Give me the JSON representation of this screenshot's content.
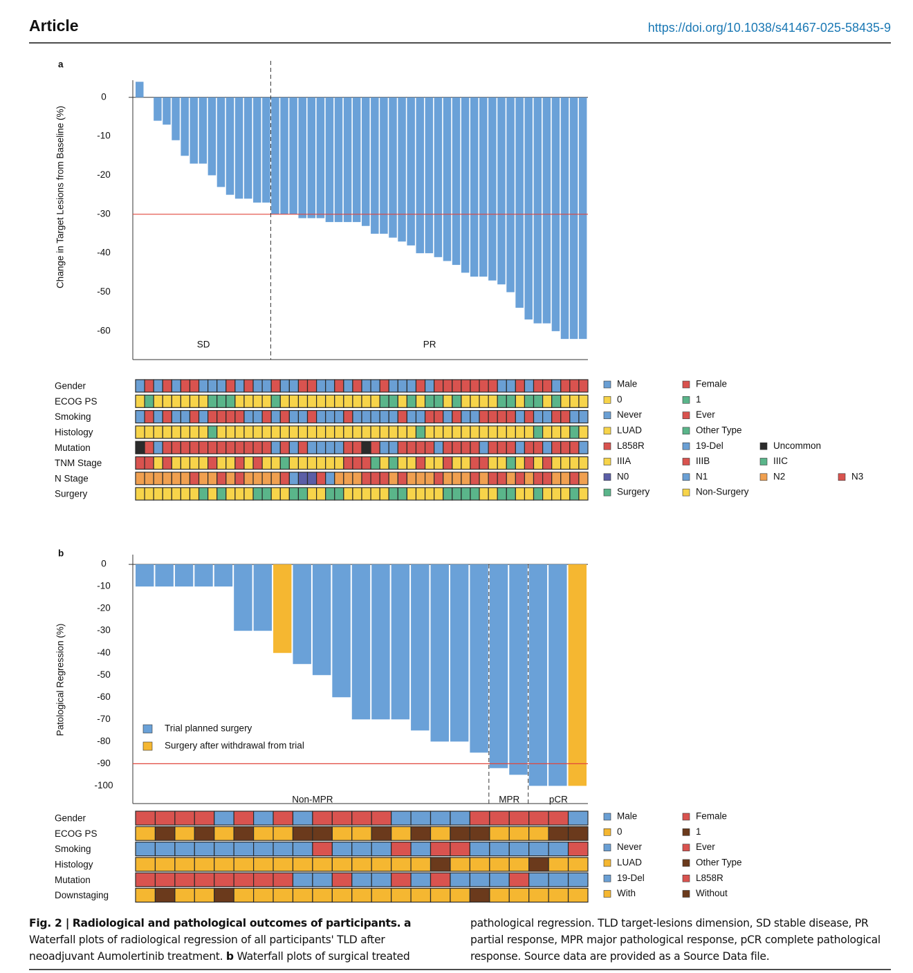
{
  "header": {
    "section": "Article",
    "doi": "https://doi.org/10.1038/s41467-025-58435-9"
  },
  "chart_data": [
    {
      "type": "bar",
      "panel": "a",
      "ylabel": "Change in Target Lesions from Baseline (%)",
      "ylim": [
        -67.3,
        4.4
      ],
      "yticks": [
        0,
        -10,
        -20,
        -30,
        -40,
        -50,
        -60
      ],
      "color": "#6aa1d8",
      "values": [
        4,
        0,
        -6,
        -7,
        -11,
        -15,
        -17,
        -17,
        -20,
        -23,
        -25,
        -26,
        -26,
        -27,
        -27,
        -30,
        -30,
        -30,
        -31,
        -31,
        -31,
        -32,
        -32,
        -32,
        -32,
        -33,
        -35,
        -35,
        -36,
        -37,
        -38,
        -40,
        -40,
        -41,
        -42,
        -43,
        -45,
        -46,
        -46,
        -47,
        -48,
        -50,
        -54,
        -57,
        -58,
        -58,
        -60,
        -62,
        -62,
        -62
      ],
      "threshold": -30,
      "threshold_color": "#e0463c",
      "groups": [
        {
          "label": "SD",
          "size": 15
        },
        {
          "label": "PR",
          "size": 35
        }
      ],
      "tracks": [
        {
          "label": "Gender",
          "legend": [
            {
              "label": "Male",
              "color": "#6a9fd4"
            },
            {
              "label": "Female",
              "color": "#d9534f"
            }
          ],
          "cells": [
            0,
            1,
            0,
            1,
            0,
            1,
            1,
            0,
            0,
            0,
            1,
            0,
            1,
            0,
            0,
            1,
            0,
            0,
            1,
            1,
            0,
            0,
            1,
            0,
            1,
            0,
            0,
            1,
            0,
            0,
            0,
            1,
            0,
            1,
            1,
            1,
            1,
            1,
            1,
            1,
            0,
            0,
            1,
            0,
            1,
            1,
            0,
            1,
            1,
            1
          ]
        },
        {
          "label": "ECOG PS",
          "legend": [
            {
              "label": "0",
              "color": "#f7d44a"
            },
            {
              "label": "1",
              "color": "#5ab58a"
            }
          ],
          "cells": [
            0,
            1,
            0,
            0,
            0,
            0,
            0,
            0,
            1,
            1,
            1,
            0,
            0,
            0,
            0,
            1,
            0,
            0,
            0,
            0,
            0,
            0,
            0,
            0,
            0,
            0,
            0,
            1,
            1,
            0,
            1,
            0,
            1,
            1,
            0,
            1,
            0,
            0,
            0,
            0,
            1,
            1,
            0,
            1,
            1,
            0,
            1,
            0,
            0,
            0
          ]
        },
        {
          "label": "Smoking",
          "legend": [
            {
              "label": "Never",
              "color": "#6a9fd4"
            },
            {
              "label": "Ever",
              "color": "#d9534f"
            }
          ],
          "cells": [
            0,
            1,
            0,
            1,
            0,
            0,
            1,
            0,
            1,
            1,
            1,
            1,
            0,
            0,
            1,
            0,
            1,
            0,
            0,
            1,
            0,
            0,
            0,
            1,
            0,
            0,
            0,
            0,
            0,
            1,
            0,
            0,
            1,
            1,
            0,
            1,
            0,
            0,
            1,
            1,
            1,
            1,
            0,
            1,
            0,
            0,
            1,
            1,
            0,
            0
          ]
        },
        {
          "label": "Histology",
          "legend": [
            {
              "label": "LUAD",
              "color": "#f7d44a"
            },
            {
              "label": "Other Type",
              "color": "#5ab58a"
            }
          ],
          "cells": [
            0,
            0,
            0,
            0,
            0,
            0,
            0,
            0,
            1,
            0,
            0,
            0,
            0,
            0,
            0,
            0,
            0,
            0,
            0,
            0,
            0,
            0,
            0,
            0,
            0,
            0,
            0,
            0,
            0,
            0,
            0,
            1,
            0,
            0,
            0,
            0,
            0,
            0,
            0,
            0,
            0,
            0,
            0,
            0,
            1,
            0,
            0,
            0,
            1,
            0
          ]
        },
        {
          "label": "Mutation",
          "legend": [
            {
              "label": "L858R",
              "color": "#d9534f"
            },
            {
              "label": "19-Del",
              "color": "#6a9fd4"
            },
            {
              "label": "Uncommon",
              "color": "#2b2b2b"
            }
          ],
          "cells": [
            2,
            0,
            1,
            0,
            0,
            0,
            0,
            0,
            0,
            0,
            0,
            0,
            0,
            0,
            0,
            1,
            0,
            1,
            0,
            1,
            1,
            1,
            1,
            0,
            0,
            2,
            0,
            1,
            1,
            0,
            0,
            0,
            0,
            1,
            0,
            0,
            0,
            0,
            1,
            0,
            0,
            0,
            1,
            0,
            0,
            1,
            0,
            0,
            0,
            1
          ]
        },
        {
          "label": "TNM Stage",
          "legend": [
            {
              "label": "IIIA",
              "color": "#f7d44a"
            },
            {
              "label": "IIIB",
              "color": "#d9534f"
            },
            {
              "label": "IIIC",
              "color": "#5ab58a"
            }
          ],
          "cells": [
            1,
            1,
            0,
            1,
            0,
            0,
            0,
            0,
            1,
            0,
            0,
            1,
            0,
            1,
            0,
            0,
            2,
            0,
            0,
            0,
            0,
            0,
            0,
            1,
            1,
            1,
            2,
            0,
            2,
            0,
            0,
            1,
            0,
            0,
            1,
            0,
            0,
            1,
            1,
            0,
            0,
            2,
            0,
            1,
            0,
            1,
            0,
            0,
            0,
            0
          ]
        },
        {
          "label": "N Stage",
          "legend": [
            {
              "label": "N0",
              "color": "#5b5ea6"
            },
            {
              "label": "N1",
              "color": "#6a9fd4"
            },
            {
              "label": "N2",
              "color": "#f0a050"
            },
            {
              "label": "N3",
              "color": "#d9534f"
            }
          ],
          "cells": [
            2,
            2,
            2,
            2,
            2,
            2,
            3,
            2,
            2,
            3,
            2,
            3,
            2,
            2,
            2,
            2,
            3,
            1,
            0,
            0,
            3,
            1,
            2,
            2,
            2,
            3,
            3,
            3,
            2,
            3,
            2,
            2,
            2,
            3,
            2,
            2,
            2,
            3,
            2,
            3,
            3,
            2,
            3,
            2,
            3,
            3,
            2,
            2,
            3,
            2
          ]
        },
        {
          "label": "Surgery",
          "legend": [
            {
              "label": "Surgery",
              "color": "#5ab58a"
            },
            {
              "label": "Non-Surgery",
              "color": "#f7d44a"
            }
          ],
          "cells": [
            1,
            1,
            1,
            1,
            1,
            1,
            1,
            0,
            1,
            0,
            1,
            1,
            1,
            0,
            0,
            1,
            1,
            0,
            0,
            1,
            1,
            0,
            0,
            1,
            1,
            1,
            1,
            1,
            0,
            0,
            1,
            1,
            1,
            1,
            0,
            0,
            0,
            0,
            1,
            1,
            0,
            0,
            1,
            1,
            0,
            1,
            1,
            1,
            0,
            1
          ]
        }
      ]
    },
    {
      "type": "bar",
      "panel": "b",
      "ylabel": "Patological Regression (%)",
      "ylim": [
        -108,
        4.4
      ],
      "yticks": [
        0,
        -10,
        -20,
        -30,
        -40,
        -50,
        -60,
        -70,
        -80,
        -90,
        -100
      ],
      "series": [
        {
          "name": "Trial planned surgery",
          "color": "#6aa1d8"
        },
        {
          "name": "Surgery after withdrawal from trial",
          "color": "#f5b731"
        }
      ],
      "values": [
        -10,
        -10,
        -10,
        -10,
        -10,
        -30,
        -30,
        -40,
        -45,
        -50,
        -60,
        -70,
        -70,
        -70,
        -75,
        -80,
        -80,
        -85,
        -92,
        -95,
        -100,
        -100,
        -100
      ],
      "bar_series": [
        0,
        0,
        0,
        0,
        0,
        0,
        0,
        1,
        0,
        0,
        0,
        0,
        0,
        0,
        0,
        0,
        0,
        0,
        0,
        0,
        0,
        0,
        1
      ],
      "threshold": -90,
      "threshold_color": "#e0463c",
      "groups": [
        {
          "label": "Non-MPR",
          "size": 18
        },
        {
          "label": "MPR",
          "size": 2
        },
        {
          "label": "pCR",
          "size": 3
        }
      ],
      "tracks": [
        {
          "label": "Gender",
          "legend": [
            {
              "label": "Male",
              "color": "#6a9fd4"
            },
            {
              "label": "Female",
              "color": "#d9534f"
            }
          ],
          "cells": [
            1,
            1,
            1,
            1,
            0,
            1,
            0,
            1,
            0,
            1,
            1,
            1,
            1,
            0,
            0,
            0,
            0,
            1,
            1,
            1,
            1,
            1,
            0
          ]
        },
        {
          "label": "ECOG PS",
          "legend": [
            {
              "label": "0",
              "color": "#f5b731"
            },
            {
              "label": "1",
              "color": "#6b3a1c"
            }
          ],
          "cells": [
            0,
            1,
            0,
            1,
            0,
            1,
            0,
            0,
            1,
            1,
            0,
            0,
            1,
            0,
            1,
            0,
            1,
            1,
            0,
            0,
            0,
            1,
            1
          ]
        },
        {
          "label": "Smoking",
          "legend": [
            {
              "label": "Never",
              "color": "#6a9fd4"
            },
            {
              "label": "Ever",
              "color": "#d9534f"
            }
          ],
          "cells": [
            0,
            0,
            0,
            0,
            0,
            0,
            0,
            0,
            0,
            1,
            0,
            0,
            0,
            1,
            0,
            1,
            1,
            0,
            0,
            0,
            0,
            0,
            1
          ]
        },
        {
          "label": "Histology",
          "legend": [
            {
              "label": "LUAD",
              "color": "#f5b731"
            },
            {
              "label": "Other Type",
              "color": "#6b3a1c"
            }
          ],
          "cells": [
            0,
            0,
            0,
            0,
            0,
            0,
            0,
            0,
            0,
            0,
            0,
            0,
            0,
            0,
            0,
            1,
            0,
            0,
            0,
            0,
            1,
            0,
            0
          ]
        },
        {
          "label": "Mutation",
          "legend": [
            {
              "label": "19-Del",
              "color": "#6a9fd4"
            },
            {
              "label": "L858R",
              "color": "#d9534f"
            }
          ],
          "cells": [
            1,
            1,
            1,
            1,
            1,
            1,
            1,
            1,
            0,
            0,
            1,
            0,
            0,
            1,
            0,
            1,
            0,
            0,
            0,
            1,
            0,
            0,
            0
          ]
        },
        {
          "label": "Downstaging",
          "legend": [
            {
              "label": "With",
              "color": "#f5b731"
            },
            {
              "label": "Without",
              "color": "#6b3a1c"
            }
          ],
          "cells": [
            0,
            1,
            0,
            0,
            1,
            0,
            0,
            0,
            0,
            0,
            0,
            0,
            0,
            0,
            0,
            0,
            0,
            1,
            0,
            0,
            0,
            0,
            0
          ]
        }
      ]
    }
  ],
  "caption": {
    "label": "Fig. 2 |",
    "title": "Radiological and pathological outcomes of participants.",
    "a_label": "a",
    "a_text": "Waterfall plots of radiological regression of all participants' TLD after neoadjuvant Aumolertinib treatment.",
    "b_label": "b",
    "b_text": "Waterfall plots of surgical treated pathological regression.",
    "notes": "TLD target-lesions dimension, SD stable disease, PR partial response, MPR major pathological response, pCR complete pathological response. Source data are provided as a Source Data file."
  }
}
